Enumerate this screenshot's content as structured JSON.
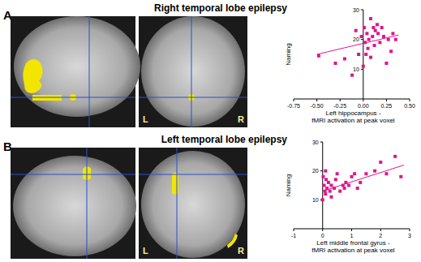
{
  "panels": [
    {
      "label": "A",
      "title": "Right temporal lobe epilepsy",
      "orientation_labels": [
        "L",
        "R"
      ]
    },
    {
      "label": "B",
      "title": "Left temporal lobe epilepsy",
      "orientation_labels": [
        "L",
        "R"
      ]
    }
  ],
  "chart_data": [
    {
      "type": "scatter",
      "x_label": [
        "Left hippocampus -",
        "fMRI activation at peak voxel"
      ],
      "y_label": "Naming",
      "xlim": [
        -0.75,
        0.5
      ],
      "xticks": [
        -0.75,
        {
          "value": -0.5,
          "label": "-0.50"
        },
        -0.25,
        {
          "value": 0,
          "label": "0.00"
        },
        0.25,
        {
          "value": 0.5,
          "label": "0.50"
        }
      ],
      "ylim": [
        0,
        30
      ],
      "yticks": [
        10,
        20,
        30
      ],
      "series": [
        {
          "type": "scatter",
          "marker": "square",
          "color": "#e0168c",
          "x": [
            -0.48,
            -0.3,
            -0.2,
            -0.12,
            -0.05,
            -0.02,
            0.01,
            0.02,
            0.03,
            0.04,
            0.05,
            0.06,
            0.08,
            0.08,
            0.1,
            0.11,
            0.12,
            0.13,
            0.15,
            0.16,
            0.18,
            0.2,
            0.22,
            0.25,
            0.27,
            0.3,
            0.32,
            0.35,
            -0.08,
            0.0
          ],
          "values": [
            14.5,
            12,
            13.5,
            8,
            15,
            21,
            24,
            19,
            15,
            22,
            17,
            20,
            27,
            14,
            21,
            24,
            18,
            23,
            25,
            22,
            19,
            24,
            21,
            12,
            20,
            16,
            22,
            20,
            23,
            11
          ]
        },
        {
          "type": "line",
          "color": "#e0168c",
          "x": [
            -0.5,
            0.38
          ],
          "values": [
            15,
            21.5
          ]
        }
      ]
    },
    {
      "type": "scatter",
      "x_label": [
        "Left middle frontal gyrus -",
        "fMRI activation at peak voxel"
      ],
      "y_label": "Naming",
      "xlim": [
        -1,
        3
      ],
      "xticks": [
        -1,
        0,
        1,
        2,
        3
      ],
      "ylim": [
        0,
        30
      ],
      "yticks": [
        10,
        20,
        30
      ],
      "series": [
        {
          "type": "scatter",
          "marker": "square",
          "color": "#e0168c",
          "x": [
            0,
            0.05,
            0.08,
            0.1,
            0.12,
            0.15,
            0.2,
            0.25,
            0.3,
            0.3,
            0.4,
            0.45,
            0.5,
            0.6,
            0.7,
            0.75,
            0.8,
            0.9,
            1.0,
            1.1,
            1.2,
            1.3,
            1.5,
            1.8,
            2.0,
            2.2,
            2.5,
            2.7,
            0.02,
            0.1
          ],
          "values": [
            10,
            15,
            13,
            12,
            17,
            14,
            16,
            13,
            11,
            15,
            14,
            17,
            19,
            13,
            15,
            14,
            16,
            15,
            18,
            19,
            14,
            16,
            19,
            20,
            23,
            19,
            25,
            18,
            18,
            20
          ]
        },
        {
          "type": "line",
          "color": "#e0168c",
          "x": [
            0,
            2.8
          ],
          "values": [
            13,
            22
          ]
        }
      ]
    }
  ]
}
